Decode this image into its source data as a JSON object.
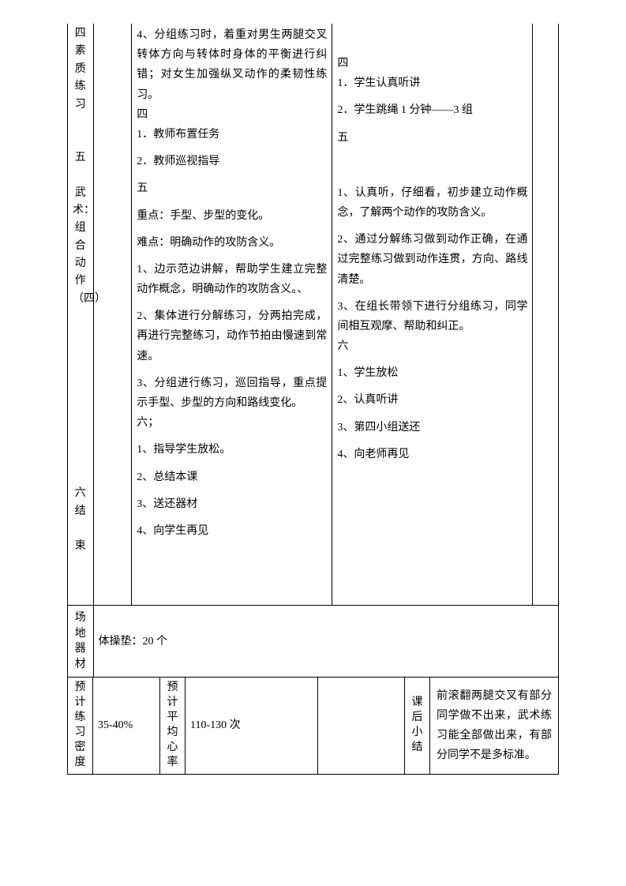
{
  "row1": {
    "labelC0": "四素质练习\n\n\n五\n\n武术：组合动作（四）\n\n\n\n\n\n\n\n\n\n\n六\n结\n\n束",
    "teacher": [
      "4、分组练习时，着重对男生两腿交叉转体方向与转体时身体的平衡进行纠错；对女生加强纵叉动作的柔韧性练习。",
      "四",
      "1．教师布置任务",
      "",
      "2．教师巡视指导",
      "",
      "五",
      "",
      "重点：手型、步型的变化。",
      "",
      "难点：明确动作的攻防含义。",
      "",
      "1、边示范边讲解，帮助学生建立完整动作概念，明确动作的攻防含义。、",
      "",
      "2、集体进行分解练习，分两拍完成，再进行完整练习，动作节拍由慢速到常速。",
      "",
      "3、分组进行练习，巡回指导，重点提示手型、步型的方向和路线变化。",
      "六；",
      "",
      "1、指导学生放松。",
      "",
      "2、总结本课",
      "",
      "3、送还器材",
      "",
      "4、向学生再见",
      ""
    ],
    "student": [
      "",
      "",
      "",
      "",
      "四",
      "1．学生认真听讲",
      "",
      "2．学生跳绳 1 分钟——3 组",
      "",
      "五",
      "",
      "",
      "",
      "",
      "",
      "1、认真听，仔细看，初步建立动作概念，了解两个动作的攻防含义。",
      "",
      "2、通过分解练习做到动作正确，在通过完整练习做到动作连贯，方向、路线清楚。",
      "",
      "3、在组长带领下进行分组练习，同学间相互观摩、帮助和纠正。",
      "六",
      "",
      "1、学生放松",
      "",
      "2、认真听讲",
      "",
      "3、第四小组送还",
      "",
      "4、向老师再见",
      ""
    ]
  },
  "row2": {
    "label": "场地器材",
    "value": "体操垫：20 个"
  },
  "row3": {
    "c0": "预计练习密度",
    "c1": "35-40%",
    "c2": "预计平均心率",
    "c3": "110-130 次",
    "c4": "课后小结",
    "c5": "前滚翻两腿交叉有部分同学做不出来，武术练习能全部做出来，有部分同学不是多标准。"
  }
}
